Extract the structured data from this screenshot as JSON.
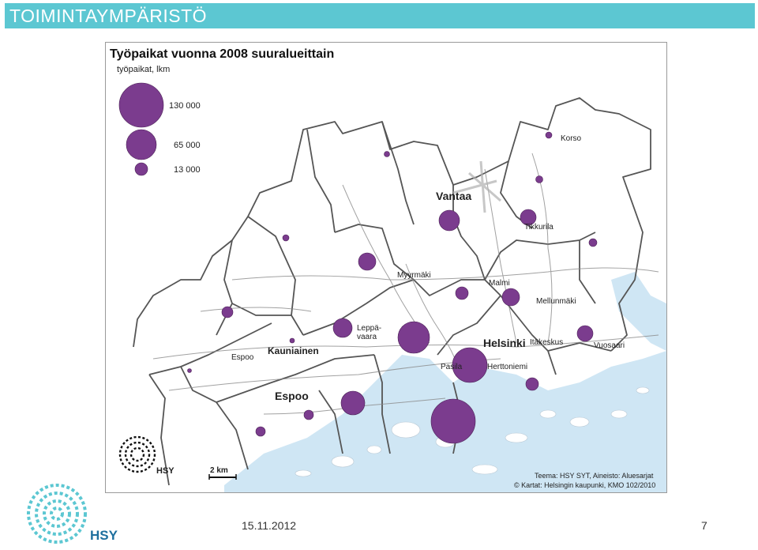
{
  "header": {
    "title": "TOIMINTAYMPÄRISTÖ",
    "background": "#5cc7d2"
  },
  "map": {
    "title": "Työpaikat vuonna 2008 suuralueittain",
    "subtitle": "työpaikat, lkm",
    "bubble_color": "#7b3c8e",
    "water_color": "#cfe6f4",
    "legend": [
      {
        "label": "130 000",
        "value": 130000
      },
      {
        "label": "65 000",
        "value": 65000
      },
      {
        "label": "13 000",
        "value": 13000
      }
    ],
    "place_labels": {
      "vantaa": "Vantaa",
      "korso": "Korso",
      "tikkurila": "Tikkurila",
      "myyrmaki": "Myyrmäki",
      "malmi": "Malmi",
      "mellunmaki": "Mellunmäki",
      "leppavaara_1": "Leppä-",
      "leppavaara_2": "vaara",
      "helsinki": "Helsinki",
      "itakeskus": "Itäkeskus",
      "vuosaari": "Vuosaari",
      "espoo_small": "Espoo",
      "kauniainen": "Kauniainen",
      "pasila": "Pasila",
      "herttoniemi": "Herttoniemi",
      "espoo_big": "Espoo"
    },
    "scale_label": "2 km",
    "inner_logo_text": "HSY",
    "source_line_1": "Teema: HSY SYT, Aineisto: Aluesarjat",
    "source_line_2": "© Kartat: Helsingin kaupunki, KMO 102/2010"
  },
  "footer": {
    "date": "15.11.2012",
    "page": "7",
    "logo_text": "HSY"
  }
}
